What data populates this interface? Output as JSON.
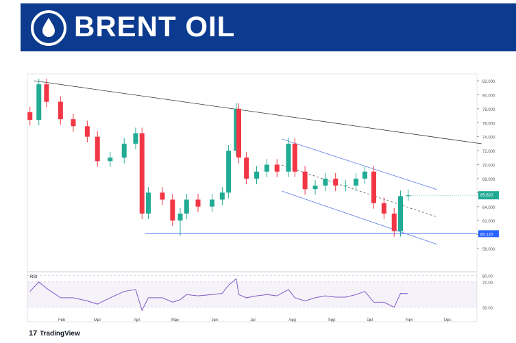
{
  "header": {
    "title": "BRENT OIL"
  },
  "footer": {
    "brand": "TradingView"
  },
  "chart_data": {
    "type": "candlestick",
    "xlim": [
      5,
      358
    ],
    "xticks": [
      {
        "value": 32,
        "label": "Feb"
      },
      {
        "value": 60,
        "label": "Mar"
      },
      {
        "value": 91,
        "label": "Apr"
      },
      {
        "value": 121,
        "label": "May"
      },
      {
        "value": 152,
        "label": "Jun"
      },
      {
        "value": 182,
        "label": "Jul"
      },
      {
        "value": 213,
        "label": "Aug"
      },
      {
        "value": 244,
        "label": "Sep"
      },
      {
        "value": 274,
        "label": "Oct"
      },
      {
        "value": 305,
        "label": "Nov"
      },
      {
        "value": 335,
        "label": "Dec"
      }
    ],
    "ylim": [
      58,
      82
    ],
    "yticks": [
      {
        "value": 82,
        "label": "82.000"
      },
      {
        "value": 80,
        "label": "80.000"
      },
      {
        "value": 78,
        "label": "78.000"
      },
      {
        "value": 76,
        "label": "76.000"
      },
      {
        "value": 74,
        "label": "74.000"
      },
      {
        "value": 72,
        "label": "72.000"
      },
      {
        "value": 70,
        "label": "70.000"
      },
      {
        "value": 68,
        "label": "68.000"
      },
      {
        "value": 66,
        "label": "66.000"
      },
      {
        "value": 64,
        "label": "64.000"
      },
      {
        "value": 62,
        "label": "62.000"
      },
      {
        "value": 60,
        "label": "60.000"
      },
      {
        "value": 58,
        "label": "58.000"
      }
    ],
    "x": [
      7,
      14,
      20,
      31,
      41,
      52,
      60,
      70,
      81,
      90,
      95,
      100,
      111,
      119,
      125,
      130,
      139,
      150,
      158,
      163,
      169,
      171,
      177,
      185,
      193,
      201,
      210,
      215,
      223,
      231,
      239,
      247,
      255,
      263,
      270,
      277,
      285,
      293,
      298,
      304
    ],
    "open": [
      77.5,
      76.4,
      81.5,
      79,
      76.5,
      75.5,
      74,
      70.5,
      71,
      73,
      74.5,
      63,
      66,
      65,
      62,
      63,
      65,
      64,
      65,
      66,
      72,
      78,
      71,
      68,
      69,
      70,
      69,
      73,
      69,
      66.5,
      67,
      68,
      67,
      67,
      68,
      69,
      64.5,
      63,
      60.5,
      65.5
    ],
    "high": [
      78.3,
      82.3,
      82.3,
      79.8,
      77.3,
      76.3,
      74.8,
      71.8,
      73.8,
      75.3,
      75.3,
      66.8,
      66.8,
      65.8,
      63.8,
      65.8,
      65.8,
      65.8,
      66.8,
      72.8,
      78.8,
      78.8,
      71.8,
      69.8,
      70.8,
      70.8,
      73.8,
      73.8,
      69.8,
      67.8,
      68.8,
      68.8,
      67.8,
      68.8,
      69.8,
      69.8,
      65.3,
      63.8,
      66.3,
      66.42
    ],
    "low": [
      75.6,
      75.6,
      78.2,
      75.7,
      74.7,
      73.2,
      69.7,
      69.7,
      70.2,
      72.2,
      62.2,
      62.2,
      64.2,
      61.2,
      59.8,
      62.2,
      63.2,
      63.2,
      64.2,
      65.2,
      71.2,
      70.2,
      67.2,
      67.2,
      68.2,
      68.2,
      68.2,
      68.2,
      65.7,
      65.7,
      66.2,
      66.2,
      66.2,
      66.2,
      67.2,
      63.7,
      62.2,
      59.7,
      59.7,
      64.82
    ],
    "close": [
      76.4,
      81.5,
      79,
      76.5,
      75.5,
      74,
      70.5,
      71,
      73,
      74.5,
      63,
      66,
      65,
      62,
      63,
      65,
      64,
      65,
      66,
      72,
      78,
      71,
      68,
      69,
      70,
      69,
      73,
      69,
      66.5,
      67,
      68,
      67,
      67,
      68,
      69,
      64.5,
      63,
      60.5,
      65.5,
      65.62
    ],
    "up_color": "#22ab94",
    "down_color": "#f23645",
    "last_price": {
      "value": 65.62,
      "label": "65.620"
    },
    "support": {
      "value": 60.12,
      "label": "60.120"
    },
    "rsi": {
      "name": "RSI",
      "color": "#7e57c2",
      "ylim": [
        20,
        85
      ],
      "yticks": [
        {
          "value": 80,
          "label": "80.00"
        },
        {
          "value": 70,
          "label": "70.00"
        },
        {
          "value": 30,
          "label": "30.00"
        }
      ],
      "values": [
        55,
        70,
        60,
        45,
        45,
        40,
        35,
        45,
        55,
        58,
        25,
        45,
        45,
        38,
        42,
        50,
        48,
        50,
        52,
        65,
        75,
        50,
        45,
        48,
        50,
        48,
        58,
        45,
        40,
        45,
        48,
        46,
        46,
        50,
        55,
        38,
        38,
        30,
        52,
        51.55
      ]
    }
  }
}
